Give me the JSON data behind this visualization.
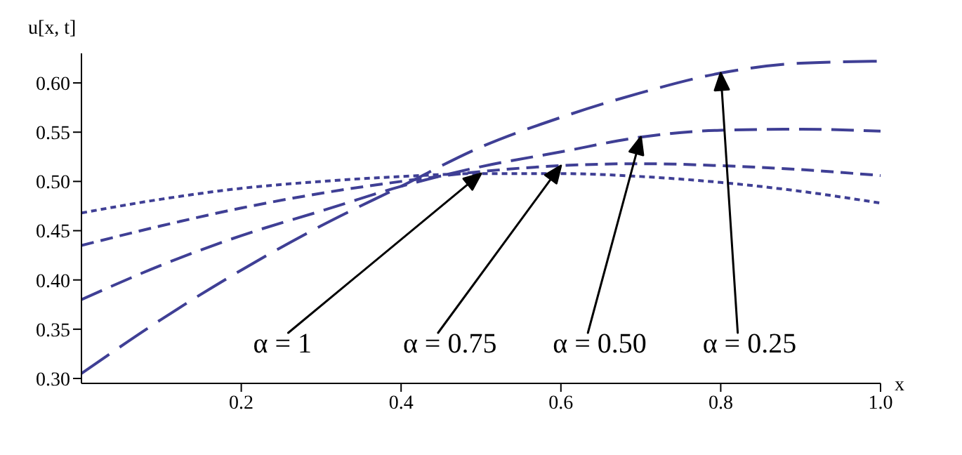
{
  "chart_data": {
    "type": "line",
    "xlabel": "x",
    "ylabel": "u[x, t]",
    "x": [
      0,
      0.1,
      0.2,
      0.3,
      0.4,
      0.5,
      0.6,
      0.7,
      0.8,
      0.9,
      1.0
    ],
    "series": [
      {
        "color": "#3f3f95",
        "values": [
          0.468,
          0.482,
          0.493,
          0.5,
          0.505,
          0.508,
          0.508,
          0.505,
          0.499,
          0.49,
          0.478
        ]
      },
      {
        "color": "#3f3f95",
        "values": [
          0.435,
          0.455,
          0.473,
          0.488,
          0.5,
          0.51,
          0.516,
          0.518,
          0.516,
          0.512,
          0.506
        ]
      },
      {
        "color": "#3f3f95",
        "values": [
          0.38,
          0.415,
          0.445,
          0.47,
          0.495,
          0.515,
          0.53,
          0.545,
          0.552,
          0.553,
          0.551
        ]
      },
      {
        "color": "#3f3f95",
        "values": [
          0.305,
          0.36,
          0.41,
          0.455,
          0.495,
          0.535,
          0.565,
          0.59,
          0.61,
          0.62,
          0.622
        ]
      }
    ],
    "xlim": [
      0,
      1
    ],
    "xticks": [
      0.2,
      0.4,
      0.6,
      0.8,
      {
        "value": 1,
        "label": "1.0"
      }
    ],
    "ylim": [
      0.295,
      0.63
    ],
    "yticks": [
      {
        "value": 0.3,
        "label": "0.30"
      },
      0.35,
      {
        "value": 0.4,
        "label": "0.40"
      },
      0.45,
      {
        "value": 0.5,
        "label": "0.50"
      },
      0.55,
      {
        "value": 0.6,
        "label": "0.60"
      }
    ],
    "grid": false,
    "marker": "none",
    "line_style": "dashed",
    "annotations": [
      "α = 1",
      "α = 0.75",
      "α = 0.50",
      "α = 0.25"
    ]
  }
}
